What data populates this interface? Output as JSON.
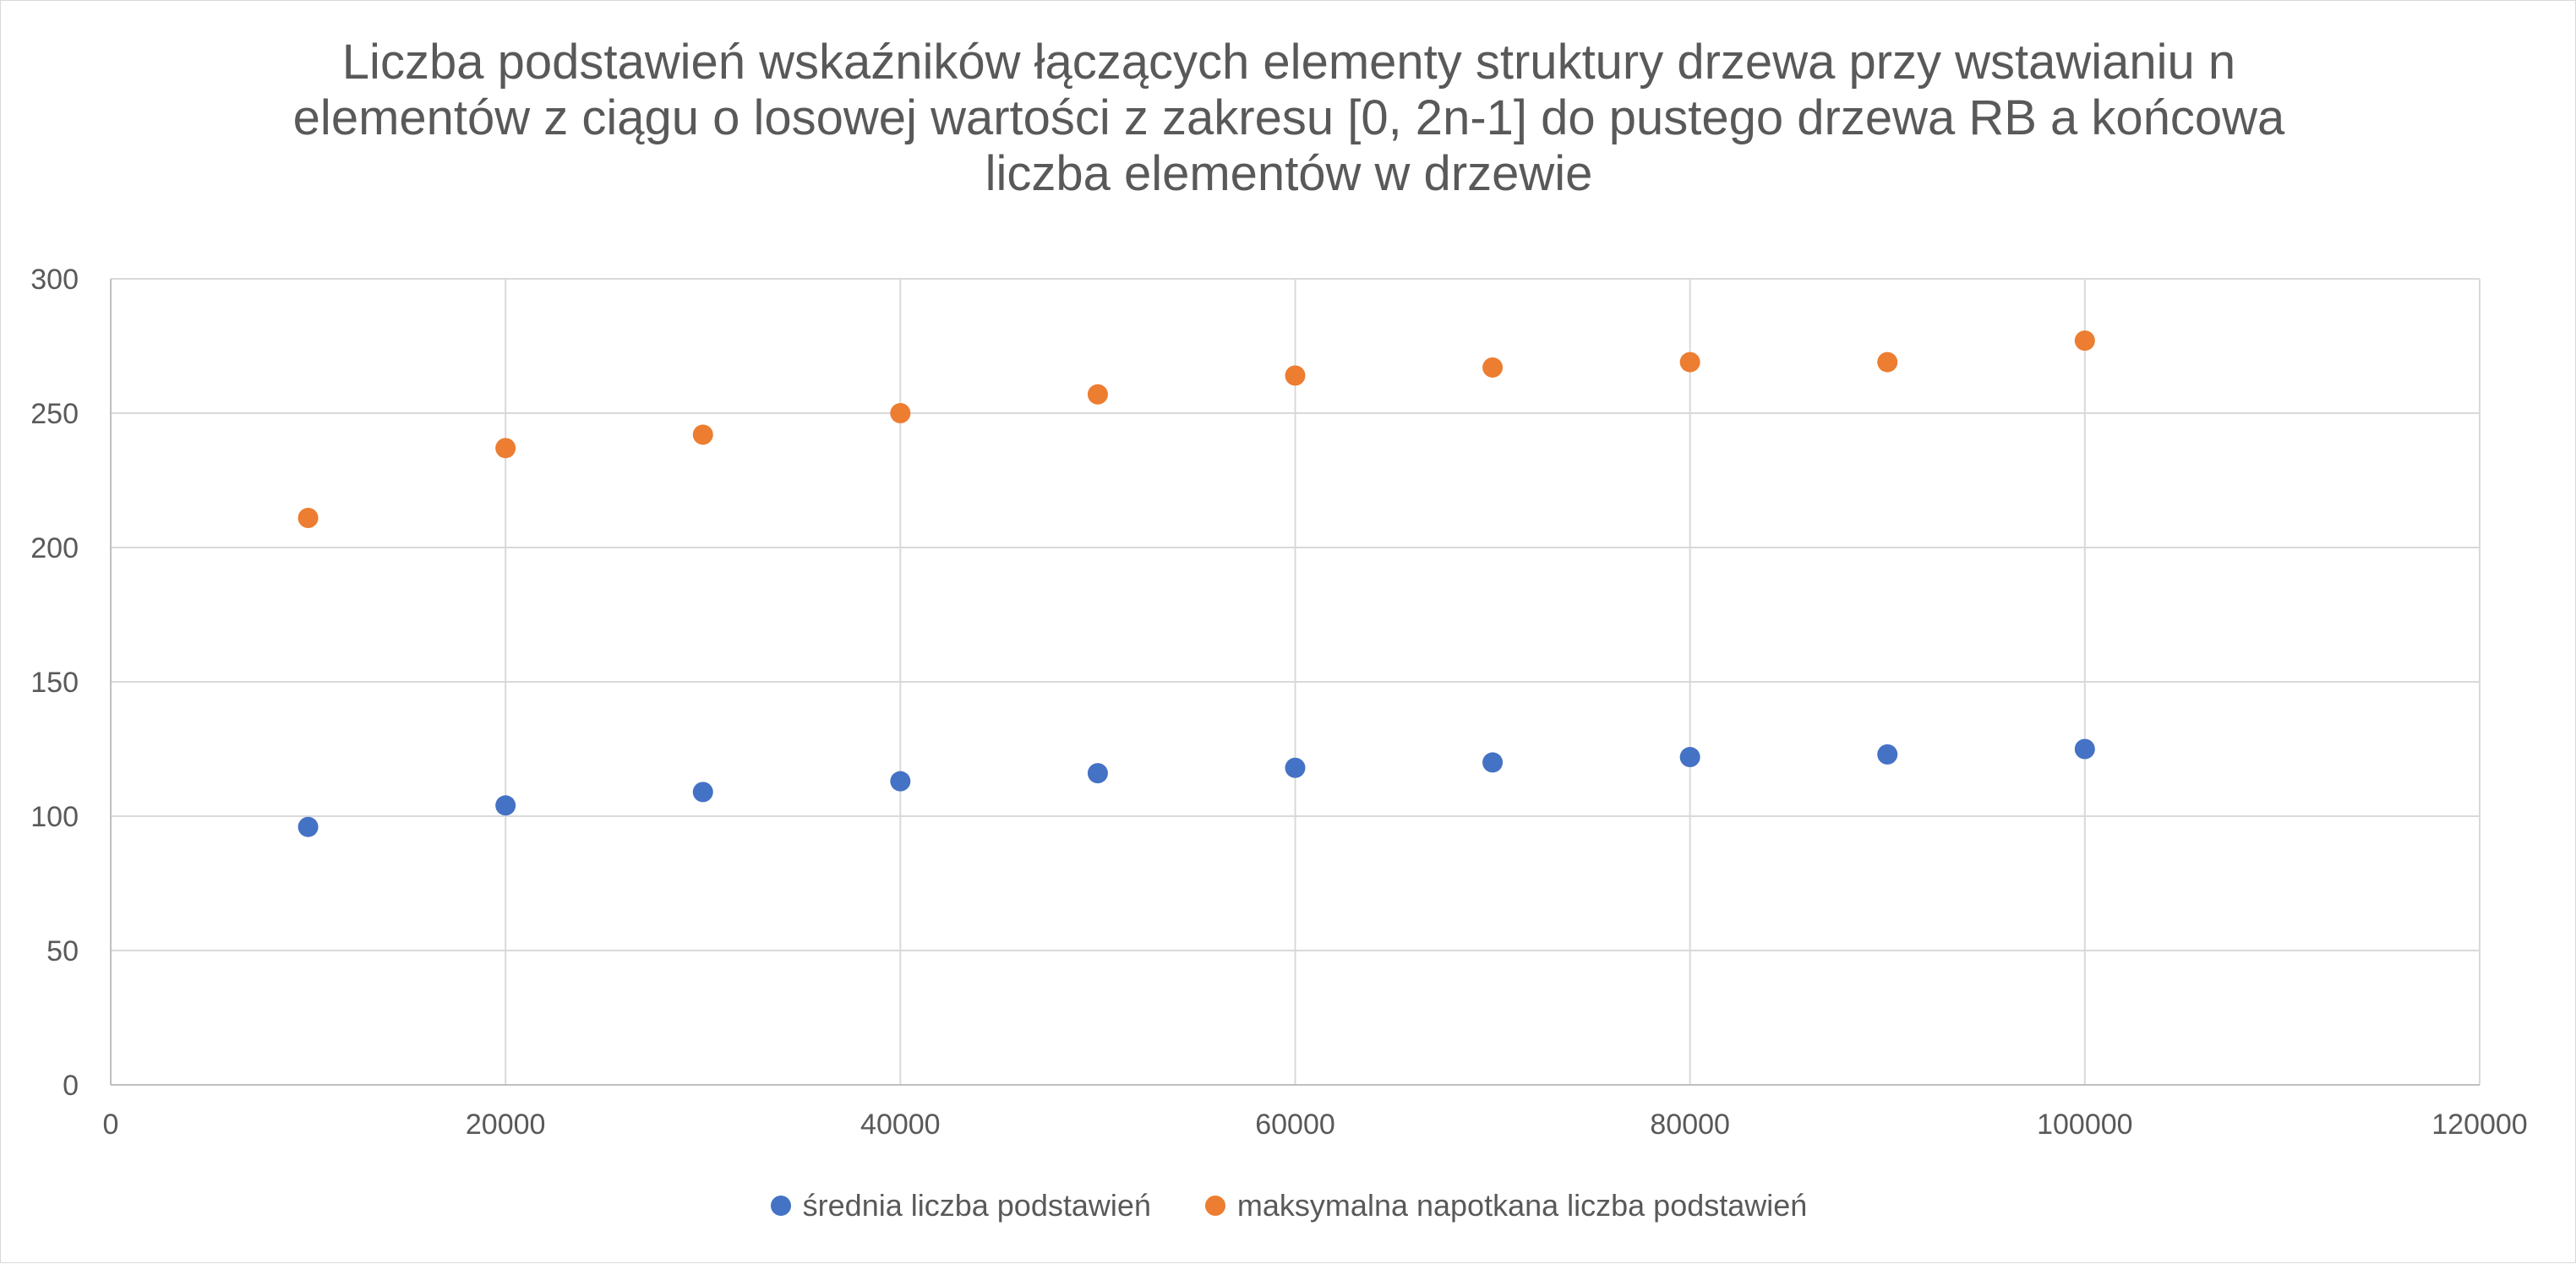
{
  "chart_data": {
    "type": "scatter",
    "title": "Liczba podstawień wskaźników łączących elementy struktury drzewa przy wstawianiu n elementów z ciągu o losowej wartości z zakresu [0, 2n-1] do pustego drzewa RB a końcowa liczba elementów w drzewie",
    "xlabel": "",
    "ylabel": "",
    "xlim": [
      0,
      120000
    ],
    "ylim": [
      0,
      300
    ],
    "x_ticks": [
      0,
      20000,
      40000,
      60000,
      80000,
      100000,
      120000
    ],
    "y_ticks": [
      0,
      50,
      100,
      150,
      200,
      250,
      300
    ],
    "grid": true,
    "legend_position": "bottom",
    "x": [
      10000,
      20000,
      30000,
      40000,
      50000,
      60000,
      70000,
      80000,
      90000,
      100000
    ],
    "series": [
      {
        "name": "średnia liczba podstawień",
        "color": "#4472c4",
        "values": [
          96,
          104,
          109,
          113,
          116,
          118,
          120,
          122,
          123,
          125
        ]
      },
      {
        "name": "maksymalna napotkana liczba podstawień",
        "color": "#ed7d31",
        "values": [
          211,
          237,
          242,
          250,
          257,
          264,
          267,
          269,
          269,
          277
        ]
      }
    ]
  }
}
